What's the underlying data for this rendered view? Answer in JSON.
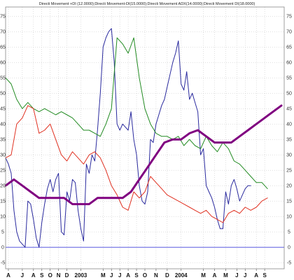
{
  "chart_data": {
    "type": "line",
    "title": "Directi Movement +DI (12.0000);Directi Movement-DI(15.0000);Directi Movement ADX(14.0000);Directi Movement DI(18.0000)",
    "xlabel": "",
    "ylabel": "",
    "ylim": [
      -7,
      78
    ],
    "y_ticks": [
      -5,
      0,
      5,
      10,
      15,
      20,
      25,
      30,
      35,
      40,
      45,
      50,
      55,
      60,
      65,
      70,
      75
    ],
    "x_range": [
      0,
      100
    ],
    "x_ticks": [
      {
        "x": 1,
        "label": "A"
      },
      {
        "x": 6,
        "label": "J"
      },
      {
        "x": 10,
        "label": "A"
      },
      {
        "x": 13,
        "label": "S"
      },
      {
        "x": 16,
        "label": "O"
      },
      {
        "x": 19,
        "label": "N"
      },
      {
        "x": 22,
        "label": "D"
      },
      {
        "x": 27,
        "label": "2003"
      },
      {
        "x": 35,
        "label": "M"
      },
      {
        "x": 38,
        "label": "J"
      },
      {
        "x": 41,
        "label": "J"
      },
      {
        "x": 44,
        "label": "A"
      },
      {
        "x": 47,
        "label": "S"
      },
      {
        "x": 50,
        "label": "O"
      },
      {
        "x": 54,
        "label": "N"
      },
      {
        "x": 58,
        "label": "D"
      },
      {
        "x": 63,
        "label": "2004"
      },
      {
        "x": 71,
        "label": "M"
      },
      {
        "x": 75,
        "label": "A"
      },
      {
        "x": 79,
        "label": "M"
      },
      {
        "x": 83,
        "label": "J"
      },
      {
        "x": 86,
        "label": "J"
      },
      {
        "x": 90,
        "label": "A"
      },
      {
        "x": 93,
        "label": "S"
      }
    ],
    "grid": true,
    "reference_line": 0,
    "series": [
      {
        "color": "#2a2a9e",
        "width": 1,
        "x": [
          0,
          1,
          2,
          3,
          4,
          5,
          6,
          7,
          8,
          9,
          10,
          11,
          12,
          13,
          14,
          15,
          16,
          17,
          18,
          19,
          20,
          21,
          22,
          23,
          24,
          25,
          26,
          27,
          28,
          29,
          30,
          31,
          32,
          33,
          34,
          35,
          36,
          37,
          38,
          39,
          40,
          41,
          42,
          43,
          44,
          45,
          46,
          47,
          48,
          49,
          50,
          51,
          52,
          53,
          54,
          55,
          56,
          57,
          58,
          59,
          60,
          61,
          62,
          63,
          64,
          65,
          66,
          67,
          68,
          69,
          70,
          71,
          72,
          73,
          74,
          75,
          76,
          77,
          78,
          79,
          80,
          81,
          82,
          83,
          84,
          85,
          86,
          87,
          88
        ],
        "values": [
          29,
          27,
          24,
          12,
          5,
          2,
          1,
          0,
          15,
          14,
          9,
          3,
          0,
          8,
          14,
          19,
          22,
          18,
          22,
          24,
          5,
          4,
          18,
          15,
          22,
          21,
          12,
          6,
          2,
          27,
          24,
          30,
          28,
          38,
          50,
          65,
          68,
          70,
          71,
          60,
          40,
          38,
          40,
          39,
          38,
          44,
          35,
          30,
          20,
          15,
          14,
          18,
          35,
          34,
          40,
          43,
          46,
          48,
          52,
          56,
          60,
          63,
          67,
          53,
          51,
          57,
          48,
          50,
          47,
          44,
          30,
          32,
          20,
          18,
          16,
          13,
          9,
          6,
          6,
          18,
          14,
          20,
          22,
          19,
          15,
          17,
          19,
          20,
          20
        ]
      },
      {
        "color": "#228b22",
        "width": 1,
        "x": [
          0,
          2,
          4,
          6,
          8,
          10,
          12,
          14,
          16,
          18,
          20,
          22,
          24,
          26,
          28,
          30,
          32,
          34,
          36,
          38,
          40,
          42,
          44,
          46,
          48,
          50,
          52,
          54,
          56,
          58,
          60,
          62,
          64,
          66,
          68,
          70,
          72,
          74,
          76,
          78,
          80,
          82,
          84,
          86,
          88,
          90,
          92,
          94
        ],
        "values": [
          55,
          53,
          48,
          45,
          47,
          45,
          44,
          45,
          44,
          43,
          44,
          43,
          42,
          40,
          38,
          38,
          37,
          36,
          40,
          45,
          68,
          66,
          63,
          68,
          55,
          45,
          40,
          37,
          36,
          36,
          35,
          36,
          33,
          35,
          33,
          32,
          36,
          33,
          31,
          34,
          32,
          28,
          27,
          25,
          23,
          21,
          21,
          19
        ]
      },
      {
        "color": "#e03020",
        "width": 1,
        "x": [
          0,
          2,
          4,
          6,
          8,
          10,
          12,
          14,
          16,
          18,
          20,
          22,
          24,
          26,
          28,
          30,
          32,
          34,
          36,
          38,
          40,
          42,
          44,
          46,
          48,
          50,
          52,
          54,
          56,
          58,
          60,
          62,
          64,
          66,
          68,
          70,
          72,
          74,
          76,
          78,
          80,
          82,
          84,
          86,
          88,
          90,
          92,
          94
        ],
        "values": [
          29,
          30,
          40,
          42,
          46,
          45,
          37,
          38,
          40,
          35,
          30,
          28,
          31,
          29,
          27,
          30,
          31,
          29,
          25,
          20,
          17,
          13,
          12,
          18,
          16,
          18,
          23,
          21,
          19,
          17,
          16,
          15,
          14,
          13,
          12,
          11,
          12,
          10,
          9,
          8,
          11,
          12,
          11,
          13,
          12,
          13,
          15,
          16
        ]
      },
      {
        "color": "#800080",
        "width": 3,
        "x": [
          0,
          3,
          6,
          9,
          12,
          15,
          18,
          21,
          24,
          27,
          30,
          33,
          36,
          39,
          42,
          45,
          48,
          51,
          54,
          57,
          60,
          63,
          66,
          69,
          72,
          75,
          78,
          81,
          84,
          87,
          90,
          93,
          96,
          99
        ],
        "values": [
          20,
          22,
          20,
          18,
          16,
          16,
          16,
          16,
          14,
          14,
          14,
          16,
          16,
          16,
          16,
          18,
          22,
          26,
          30,
          34,
          35,
          35,
          37,
          38,
          36,
          34,
          34,
          34,
          36,
          38,
          40,
          42,
          44,
          46
        ]
      }
    ]
  }
}
